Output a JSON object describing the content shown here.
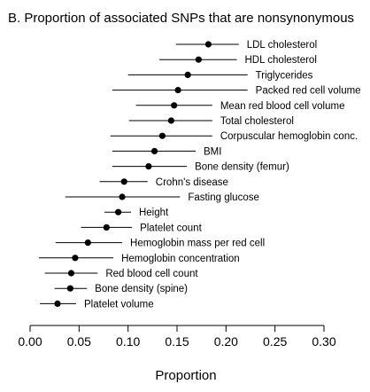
{
  "chart_data": {
    "type": "scatter",
    "title": "B. Proportion of associated SNPs that are nonsynonymous",
    "xlabel": "Proportion",
    "ylabel": "",
    "xlim": [
      0.0,
      0.3
    ],
    "xticks": [
      "0.00",
      "0.05",
      "0.10",
      "0.15",
      "0.20",
      "0.25",
      "0.30"
    ],
    "grid": false,
    "error_bars": "horizontal confidence intervals",
    "points": [
      {
        "label": "LDL cholesterol",
        "value": 0.182,
        "low": 0.149,
        "high": 0.213
      },
      {
        "label": "HDL cholesterol",
        "value": 0.172,
        "low": 0.132,
        "high": 0.211
      },
      {
        "label": "Triglycerides",
        "value": 0.161,
        "low": 0.1,
        "high": 0.222
      },
      {
        "label": "Packed red cell volume",
        "value": 0.151,
        "low": 0.084,
        "high": 0.222
      },
      {
        "label": "Mean red blood cell volume",
        "value": 0.147,
        "low": 0.108,
        "high": 0.186
      },
      {
        "label": "Total cholesterol",
        "value": 0.144,
        "low": 0.101,
        "high": 0.186
      },
      {
        "label": "Corpuscular hemoglobin conc.",
        "value": 0.135,
        "low": 0.082,
        "high": 0.186
      },
      {
        "label": "BMI",
        "value": 0.127,
        "low": 0.084,
        "high": 0.169
      },
      {
        "label": "Bone density (femur)",
        "value": 0.121,
        "low": 0.084,
        "high": 0.16
      },
      {
        "label": "Crohn's disease",
        "value": 0.096,
        "low": 0.071,
        "high": 0.12
      },
      {
        "label": "Fasting glucose",
        "value": 0.094,
        "low": 0.036,
        "high": 0.153
      },
      {
        "label": "Height",
        "value": 0.09,
        "low": 0.076,
        "high": 0.103
      },
      {
        "label": "Platelet count",
        "value": 0.078,
        "low": 0.052,
        "high": 0.104
      },
      {
        "label": "Hemoglobin mass per red cell",
        "value": 0.059,
        "low": 0.026,
        "high": 0.094
      },
      {
        "label": "Hemoglobin concentration",
        "value": 0.046,
        "low": 0.009,
        "high": 0.085
      },
      {
        "label": "Red blood cell count",
        "value": 0.042,
        "low": 0.015,
        "high": 0.069
      },
      {
        "label": "Bone density (spine)",
        "value": 0.041,
        "low": 0.025,
        "high": 0.058
      },
      {
        "label": "Platelet volume",
        "value": 0.028,
        "low": 0.01,
        "high": 0.047
      }
    ]
  }
}
